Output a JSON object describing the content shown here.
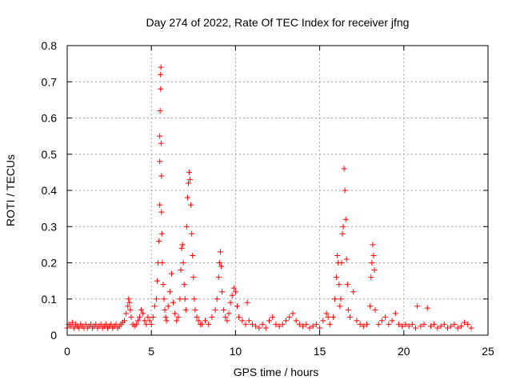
{
  "chart_data": {
    "type": "scatter",
    "title": "Day 274 of 2022, Rate Of TEC Index for receiver jfng",
    "xlabel": "GPS time / hours",
    "ylabel": "ROTI / TECUs",
    "xlim": [
      0,
      25
    ],
    "ylim": [
      0,
      0.8
    ],
    "xticks": [
      0,
      5,
      10,
      15,
      20,
      25
    ],
    "yticks": [
      0,
      0.1,
      0.2,
      0.3,
      0.4,
      0.5,
      0.6,
      0.7,
      0.8
    ],
    "xtick_labels": [
      "0",
      "5",
      "10",
      "15",
      "20",
      "25"
    ],
    "ytick_labels": [
      "0",
      "0.1",
      "0.2",
      "0.3",
      "0.4",
      "0.5",
      "0.6",
      "0.7",
      "0.8"
    ],
    "grid": true,
    "legend": "none",
    "marker": "plus",
    "color": "#ff0000",
    "series": [
      {
        "values": [
          [
            0.0,
            0.02
          ],
          [
            0.1,
            0.03
          ],
          [
            0.2,
            0.025
          ],
          [
            0.3,
            0.035
          ],
          [
            0.4,
            0.02
          ],
          [
            0.5,
            0.03
          ],
          [
            0.6,
            0.025
          ],
          [
            0.7,
            0.02
          ],
          [
            0.8,
            0.03
          ],
          [
            0.9,
            0.025
          ],
          [
            1.0,
            0.02
          ],
          [
            1.1,
            0.03
          ],
          [
            1.2,
            0.02
          ],
          [
            1.3,
            0.025
          ],
          [
            1.4,
            0.03
          ],
          [
            1.5,
            0.02
          ],
          [
            1.6,
            0.025
          ],
          [
            1.7,
            0.03
          ],
          [
            1.8,
            0.02
          ],
          [
            1.9,
            0.025
          ],
          [
            2.0,
            0.03
          ],
          [
            2.1,
            0.02
          ],
          [
            2.2,
            0.025
          ],
          [
            2.3,
            0.03
          ],
          [
            2.4,
            0.02
          ],
          [
            2.5,
            0.025
          ],
          [
            2.6,
            0.03
          ],
          [
            2.7,
            0.02
          ],
          [
            2.8,
            0.025
          ],
          [
            2.9,
            0.03
          ],
          [
            3.0,
            0.02
          ],
          [
            3.1,
            0.025
          ],
          [
            3.2,
            0.03
          ],
          [
            3.3,
            0.035
          ],
          [
            3.4,
            0.04
          ],
          [
            3.5,
            0.06
          ],
          [
            3.6,
            0.08
          ],
          [
            3.65,
            0.1
          ],
          [
            3.7,
            0.09
          ],
          [
            3.75,
            0.07
          ],
          [
            3.8,
            0.05
          ],
          [
            3.9,
            0.03
          ],
          [
            4.0,
            0.025
          ],
          [
            4.1,
            0.03
          ],
          [
            4.2,
            0.04
          ],
          [
            4.3,
            0.05
          ],
          [
            4.4,
            0.07
          ],
          [
            4.5,
            0.06
          ],
          [
            4.6,
            0.04
          ],
          [
            4.7,
            0.03
          ],
          [
            4.8,
            0.05
          ],
          [
            4.9,
            0.04
          ],
          [
            5.0,
            0.03
          ],
          [
            5.1,
            0.05
          ],
          [
            5.2,
            0.08
          ],
          [
            5.3,
            0.1
          ],
          [
            5.35,
            0.15
          ],
          [
            5.4,
            0.2
          ],
          [
            5.45,
            0.26
          ],
          [
            5.5,
            0.36
          ],
          [
            5.5,
            0.48
          ],
          [
            5.5,
            0.55
          ],
          [
            5.52,
            0.62
          ],
          [
            5.55,
            0.68
          ],
          [
            5.55,
            0.72
          ],
          [
            5.57,
            0.74
          ],
          [
            5.58,
            0.53
          ],
          [
            5.6,
            0.44
          ],
          [
            5.6,
            0.34
          ],
          [
            5.62,
            0.28
          ],
          [
            5.65,
            0.2
          ],
          [
            5.7,
            0.14
          ],
          [
            5.75,
            0.1
          ],
          [
            5.8,
            0.07
          ],
          [
            5.85,
            0.05
          ],
          [
            5.9,
            0.04
          ],
          [
            6.0,
            0.08
          ],
          [
            6.1,
            0.12
          ],
          [
            6.2,
            0.17
          ],
          [
            6.3,
            0.09
          ],
          [
            6.4,
            0.06
          ],
          [
            6.5,
            0.04
          ],
          [
            6.6,
            0.05
          ],
          [
            6.7,
            0.1
          ],
          [
            6.75,
            0.18
          ],
          [
            6.8,
            0.24
          ],
          [
            6.85,
            0.25
          ],
          [
            6.9,
            0.2
          ],
          [
            6.95,
            0.14
          ],
          [
            7.0,
            0.1
          ],
          [
            7.05,
            0.07
          ],
          [
            7.1,
            0.3
          ],
          [
            7.15,
            0.38
          ],
          [
            7.2,
            0.42
          ],
          [
            7.25,
            0.45
          ],
          [
            7.3,
            0.43
          ],
          [
            7.35,
            0.36
          ],
          [
            7.4,
            0.28
          ],
          [
            7.45,
            0.22
          ],
          [
            7.5,
            0.16
          ],
          [
            7.55,
            0.1
          ],
          [
            7.6,
            0.07
          ],
          [
            7.7,
            0.05
          ],
          [
            7.8,
            0.04
          ],
          [
            7.9,
            0.03
          ],
          [
            8.0,
            0.03
          ],
          [
            8.2,
            0.04
          ],
          [
            8.4,
            0.03
          ],
          [
            8.6,
            0.05
          ],
          [
            8.8,
            0.07
          ],
          [
            8.9,
            0.1
          ],
          [
            9.0,
            0.16
          ],
          [
            9.05,
            0.2
          ],
          [
            9.1,
            0.23
          ],
          [
            9.15,
            0.19
          ],
          [
            9.2,
            0.12
          ],
          [
            9.3,
            0.07
          ],
          [
            9.4,
            0.05
          ],
          [
            9.5,
            0.04
          ],
          [
            9.6,
            0.06
          ],
          [
            9.7,
            0.09
          ],
          [
            9.8,
            0.11
          ],
          [
            9.9,
            0.13
          ],
          [
            10.0,
            0.12
          ],
          [
            10.1,
            0.08
          ],
          [
            10.2,
            0.05
          ],
          [
            10.4,
            0.04
          ],
          [
            10.6,
            0.03
          ],
          [
            10.7,
            0.09
          ],
          [
            10.8,
            0.04
          ],
          [
            11.0,
            0.03
          ],
          [
            11.2,
            0.025
          ],
          [
            11.4,
            0.02
          ],
          [
            11.6,
            0.03
          ],
          [
            11.8,
            0.02
          ],
          [
            12.0,
            0.04
          ],
          [
            12.2,
            0.05
          ],
          [
            12.4,
            0.03
          ],
          [
            12.6,
            0.025
          ],
          [
            12.8,
            0.03
          ],
          [
            13.0,
            0.04
          ],
          [
            13.2,
            0.05
          ],
          [
            13.4,
            0.06
          ],
          [
            13.6,
            0.04
          ],
          [
            13.8,
            0.03
          ],
          [
            14.0,
            0.025
          ],
          [
            14.2,
            0.03
          ],
          [
            14.4,
            0.02
          ],
          [
            14.6,
            0.025
          ],
          [
            14.8,
            0.03
          ],
          [
            15.0,
            0.02
          ],
          [
            15.2,
            0.04
          ],
          [
            15.4,
            0.06
          ],
          [
            15.5,
            0.05
          ],
          [
            15.6,
            0.03
          ],
          [
            15.8,
            0.05
          ],
          [
            15.9,
            0.1
          ],
          [
            16.0,
            0.16
          ],
          [
            16.05,
            0.22
          ],
          [
            16.1,
            0.2
          ],
          [
            16.15,
            0.14
          ],
          [
            16.2,
            0.08
          ],
          [
            16.25,
            0.1
          ],
          [
            16.3,
            0.2
          ],
          [
            16.35,
            0.28
          ],
          [
            16.4,
            0.3
          ],
          [
            16.45,
            0.46
          ],
          [
            16.5,
            0.4
          ],
          [
            16.55,
            0.32
          ],
          [
            16.6,
            0.21
          ],
          [
            16.65,
            0.14
          ],
          [
            16.7,
            0.07
          ],
          [
            16.8,
            0.05
          ],
          [
            17.0,
            0.12
          ],
          [
            17.2,
            0.04
          ],
          [
            17.4,
            0.03
          ],
          [
            17.6,
            0.025
          ],
          [
            17.8,
            0.03
          ],
          [
            18.0,
            0.08
          ],
          [
            18.05,
            0.16
          ],
          [
            18.1,
            0.2
          ],
          [
            18.15,
            0.25
          ],
          [
            18.2,
            0.22
          ],
          [
            18.25,
            0.18
          ],
          [
            18.3,
            0.07
          ],
          [
            18.5,
            0.03
          ],
          [
            18.7,
            0.04
          ],
          [
            18.9,
            0.05
          ],
          [
            19.1,
            0.03
          ],
          [
            19.3,
            0.04
          ],
          [
            19.5,
            0.06
          ],
          [
            19.7,
            0.03
          ],
          [
            19.9,
            0.025
          ],
          [
            20.1,
            0.03
          ],
          [
            20.3,
            0.025
          ],
          [
            20.5,
            0.03
          ],
          [
            20.7,
            0.02
          ],
          [
            20.8,
            0.08
          ],
          [
            21.0,
            0.025
          ],
          [
            21.2,
            0.03
          ],
          [
            21.4,
            0.075
          ],
          [
            21.6,
            0.025
          ],
          [
            21.8,
            0.03
          ],
          [
            22.0,
            0.02
          ],
          [
            22.2,
            0.025
          ],
          [
            22.4,
            0.03
          ],
          [
            22.6,
            0.02
          ],
          [
            22.8,
            0.025
          ],
          [
            23.0,
            0.03
          ],
          [
            23.2,
            0.02
          ],
          [
            23.4,
            0.025
          ],
          [
            23.6,
            0.035
          ],
          [
            23.8,
            0.03
          ],
          [
            24.0,
            0.02
          ]
        ]
      }
    ]
  }
}
